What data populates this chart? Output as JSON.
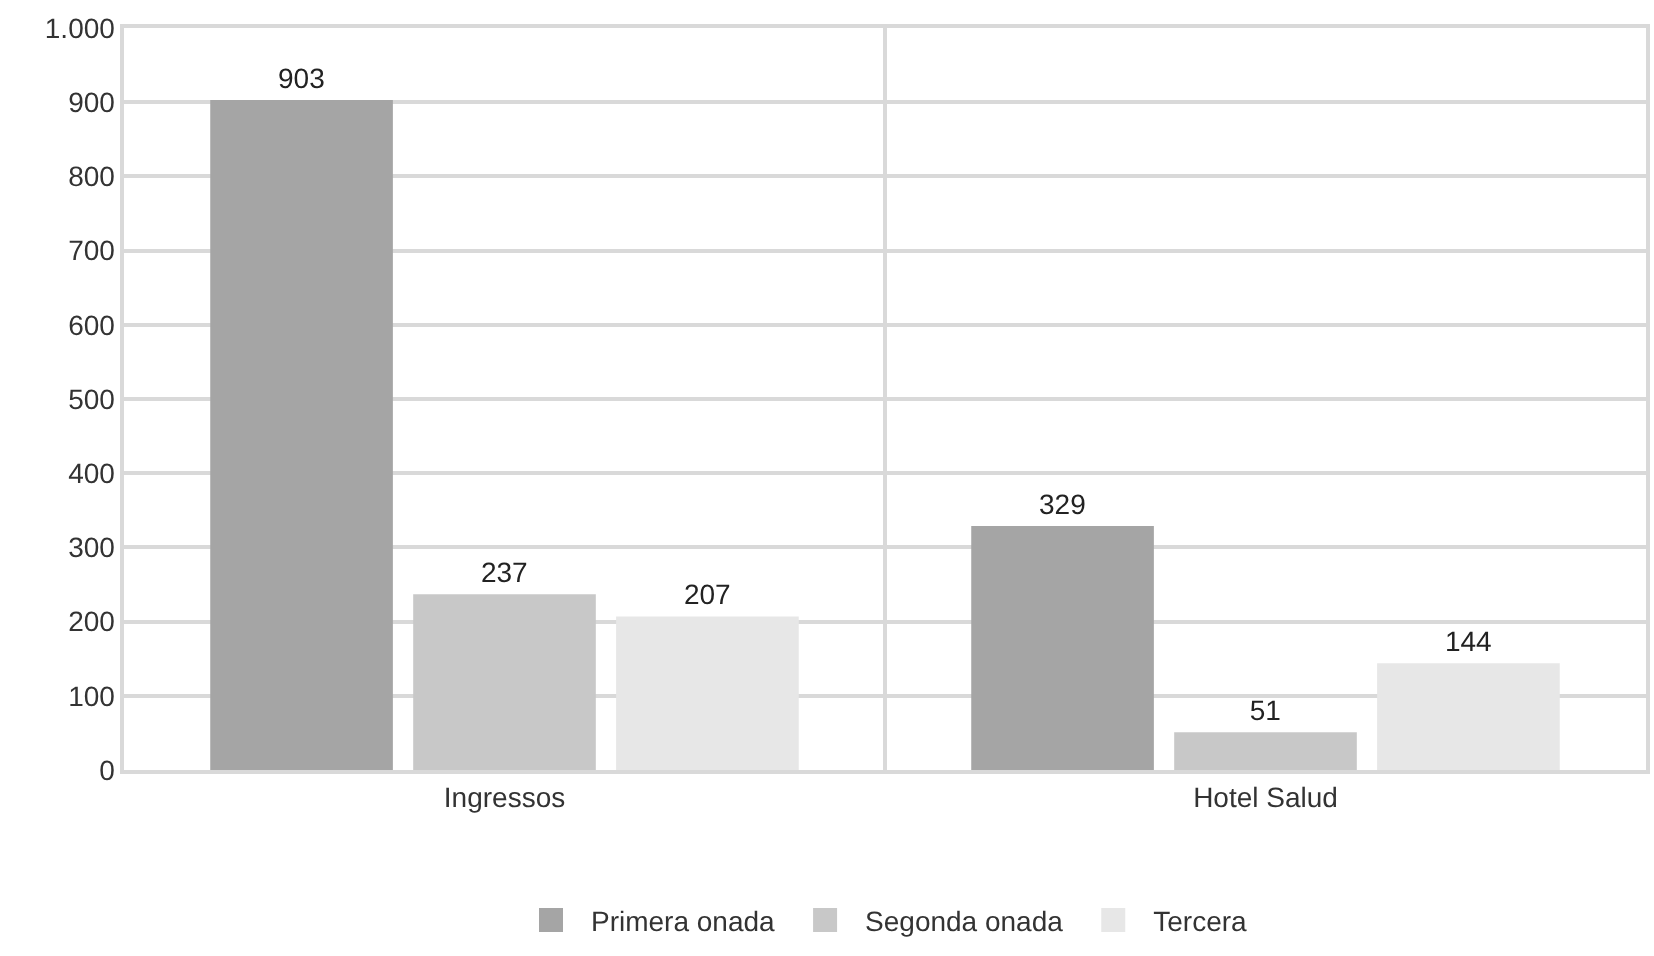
{
  "chart_data": {
    "type": "bar",
    "categories": [
      "Ingressos",
      "Hotel Salud"
    ],
    "series": [
      {
        "name": "Primera onada",
        "color": "#a5a5a5",
        "values": [
          903,
          329
        ]
      },
      {
        "name": "Segonda onada",
        "color": "#c8c8c8",
        "values": [
          237,
          51
        ]
      },
      {
        "name": "Tercera",
        "color": "#e7e7e7",
        "values": [
          207,
          144
        ]
      }
    ],
    "ylim": [
      0,
      1000
    ],
    "yticks": [
      0,
      100,
      200,
      300,
      400,
      500,
      600,
      700,
      800,
      900,
      {
        "value": 1000,
        "label": "1.000"
      }
    ],
    "grid": true,
    "legend": "bottom",
    "data_labels": true
  }
}
